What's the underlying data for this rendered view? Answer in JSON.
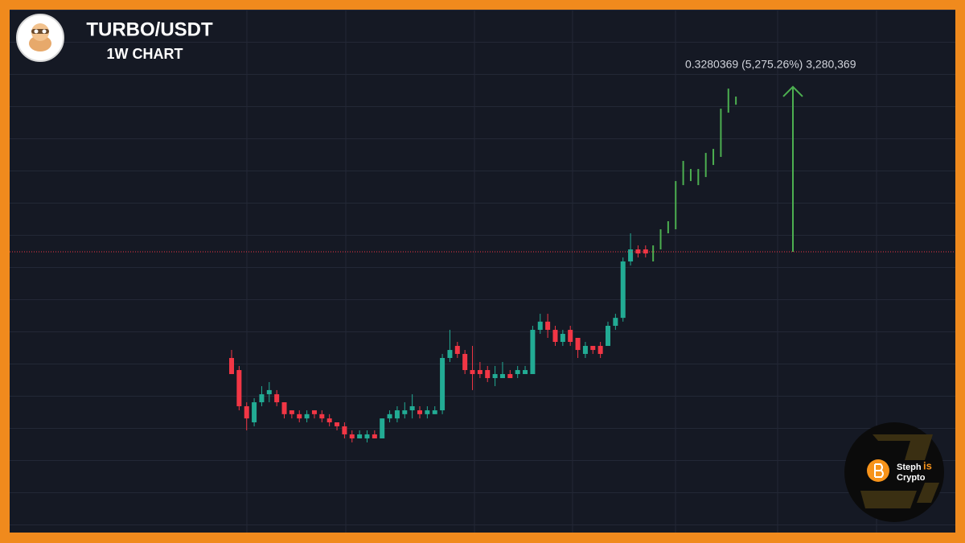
{
  "chart_data": {
    "type": "candlestick",
    "title": "TURBO/USDT",
    "subtitle": "1W CHART",
    "log_scale": true,
    "ylim": [
      7.05e-06,
      2.155
    ],
    "up_color": "#22ab94",
    "down_color": "#f23645",
    "open": [
      0.000478,
      0.000357,
      0.000149,
      0.000101,
      0.000164,
      0.000199,
      0.000199,
      0.000164,
      0.000135,
      0.000123,
      0.000111,
      0.000135,
      0.000123,
      0.000111,
      0.000101,
      9.17e-05,
      7.55e-05,
      6.85e-05,
      6.85e-05,
      7.55e-05,
      6.85e-05,
      0.000111,
      0.000111,
      0.000123,
      0.000135,
      0.000135,
      0.000123,
      0.000123,
      0.000135,
      0.000478,
      0.00064,
      0.000527,
      0.000357,
      0.000357,
      0.000357,
      0.000294,
      0.000294,
      0.000324,
      0.000324,
      0.000324,
      0.000324,
      0.000943,
      0.00115,
      0.000943,
      0.000705,
      0.000943,
      0.000777,
      0.000527,
      0.00064,
      0.00064,
      0.00064,
      0.00104,
      0.00126,
      0.00492,
      0.00658,
      0.00658
    ],
    "high": [
      0.00058,
      0.000394,
      0.000164,
      0.000181,
      0.000242,
      0.000267,
      0.00022,
      0.000164,
      0.000135,
      0.000135,
      0.000135,
      0.000135,
      0.000135,
      0.000123,
      0.000101,
      0.000101,
      8.32e-05,
      8.32e-05,
      8.32e-05,
      8.32e-05,
      0.000111,
      0.000135,
      0.000149,
      0.000164,
      0.000199,
      0.000149,
      0.000149,
      0.000149,
      0.000527,
      0.000943,
      0.000705,
      0.00058,
      0.00064,
      0.000434,
      0.000394,
      0.000394,
      0.000434,
      0.000357,
      0.000394,
      0.000394,
      0.00104,
      0.00139,
      0.00139,
      0.00104,
      0.000943,
      0.00104,
      0.000777,
      0.000705,
      0.00064,
      0.000705,
      0.00115,
      0.00139,
      0.00542,
      0.00971,
      0.00725,
      0.00725
    ],
    "low": [
      0.000324,
      0.000135,
      8.32e-05,
      9.17e-05,
      0.000149,
      0.000164,
      0.000149,
      0.000111,
      0.000111,
      0.000101,
      0.000101,
      0.000111,
      0.000101,
      9.17e-05,
      8.32e-05,
      6.85e-05,
      6.22e-05,
      6.85e-05,
      6.22e-05,
      6.85e-05,
      6.85e-05,
      0.000101,
      0.000101,
      0.000111,
      0.000111,
      0.000111,
      0.000111,
      0.000123,
      0.000123,
      0.000434,
      0.000478,
      0.000324,
      0.00022,
      0.000294,
      0.000267,
      0.000242,
      0.000294,
      0.000294,
      0.000294,
      0.000324,
      0.000324,
      0.000856,
      0.000777,
      0.00064,
      0.00064,
      0.00064,
      0.000478,
      0.000478,
      0.000527,
      0.000478,
      0.00064,
      0.000943,
      0.00115,
      0.00446,
      0.00542,
      0.00542
    ],
    "close": [
      0.000324,
      0.000149,
      0.000111,
      0.000164,
      0.000199,
      0.00022,
      0.000164,
      0.000123,
      0.000123,
      0.000111,
      0.000123,
      0.000123,
      0.000111,
      0.000101,
      9.17e-05,
      7.55e-05,
      6.85e-05,
      7.55e-05,
      7.55e-05,
      6.85e-05,
      0.000111,
      0.000123,
      0.000135,
      0.000135,
      0.000149,
      0.000123,
      0.000135,
      0.000135,
      0.000478,
      0.00058,
      0.000527,
      0.000357,
      0.000324,
      0.000324,
      0.000294,
      0.000324,
      0.000324,
      0.000294,
      0.000357,
      0.000357,
      0.000943,
      0.00115,
      0.000943,
      0.000705,
      0.000856,
      0.000705,
      0.00058,
      0.00064,
      0.00058,
      0.000527,
      0.00104,
      0.00126,
      0.00492,
      0.00658,
      0.00597,
      0.00597
    ],
    "projection": {
      "color": "#4caf50",
      "high": [
        0.00725,
        0.0107,
        0.013,
        0.0343,
        0.0558,
        0.0459,
        0.0459,
        0.0677,
        0.0746,
        0.197,
        0.32,
        0.264
      ],
      "low": [
        0.00492,
        0.00658,
        0.00971,
        0.0107,
        0.0311,
        0.0343,
        0.0311,
        0.0378,
        0.0506,
        0.0615,
        0.179,
        0.217
      ]
    },
    "price_line": 0.006218,
    "price_line_color": "#f23645",
    "measure": {
      "from": 0.006218,
      "to": 0.3342,
      "label": "0.3280369 (5,275.26%) 3,280,369",
      "color": "#4caf50"
    }
  },
  "brand": {
    "first": "Steph",
    "middle": "is",
    "last": "Crypto"
  }
}
